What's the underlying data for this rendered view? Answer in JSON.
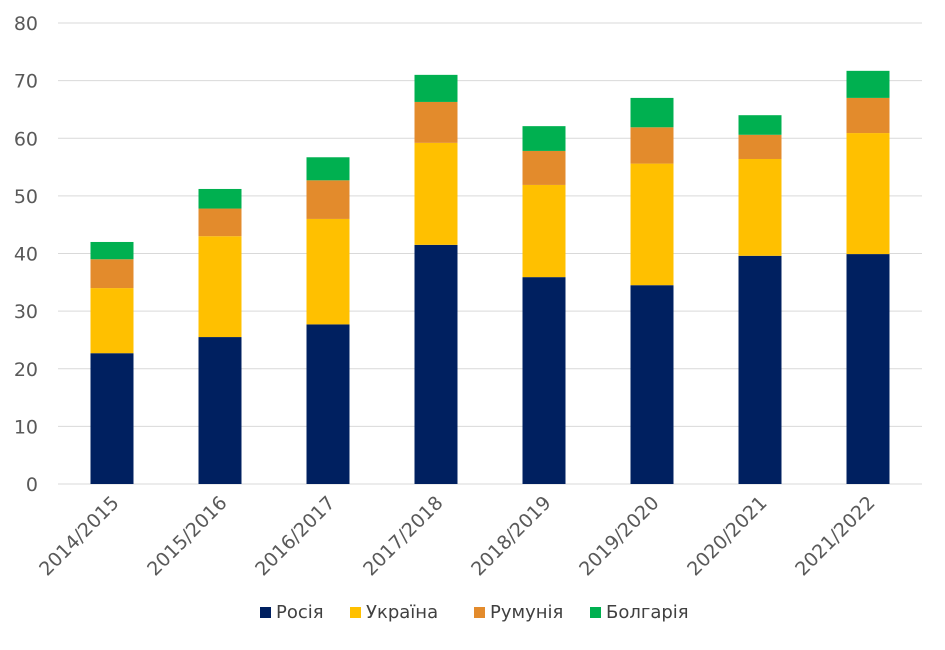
{
  "chart_data": {
    "type": "bar",
    "stacked": true,
    "categories": [
      "2014/2015",
      "2015/2016",
      "2016/2017",
      "2017/2018",
      "2018/2019",
      "2019/2020",
      "2020/2021",
      "2021/2022"
    ],
    "series": [
      {
        "name": "Росія",
        "color": "#002060",
        "values": [
          22.7,
          25.5,
          27.7,
          41.5,
          35.9,
          34.5,
          39.6,
          39.9
        ]
      },
      {
        "name": "Україна",
        "color": "#ffc000",
        "values": [
          11.3,
          17.5,
          18.3,
          17.7,
          16.0,
          21.1,
          16.8,
          21.0
        ]
      },
      {
        "name": "Румунія",
        "color": "#e38b2c",
        "values": [
          5.0,
          4.8,
          6.7,
          7.1,
          5.9,
          6.3,
          4.2,
          6.1
        ]
      },
      {
        "name": "Болгарія",
        "color": "#00b050",
        "values": [
          3.0,
          3.4,
          4.0,
          4.7,
          4.3,
          5.1,
          3.4,
          4.7
        ]
      }
    ],
    "title": "",
    "xlabel": "",
    "ylabel": "",
    "ylim": [
      0,
      80
    ],
    "yticks": [
      "0",
      "10",
      "20",
      "30",
      "40",
      "50",
      "60",
      "70",
      "80"
    ],
    "grid": true,
    "legend_position": "bottom"
  }
}
